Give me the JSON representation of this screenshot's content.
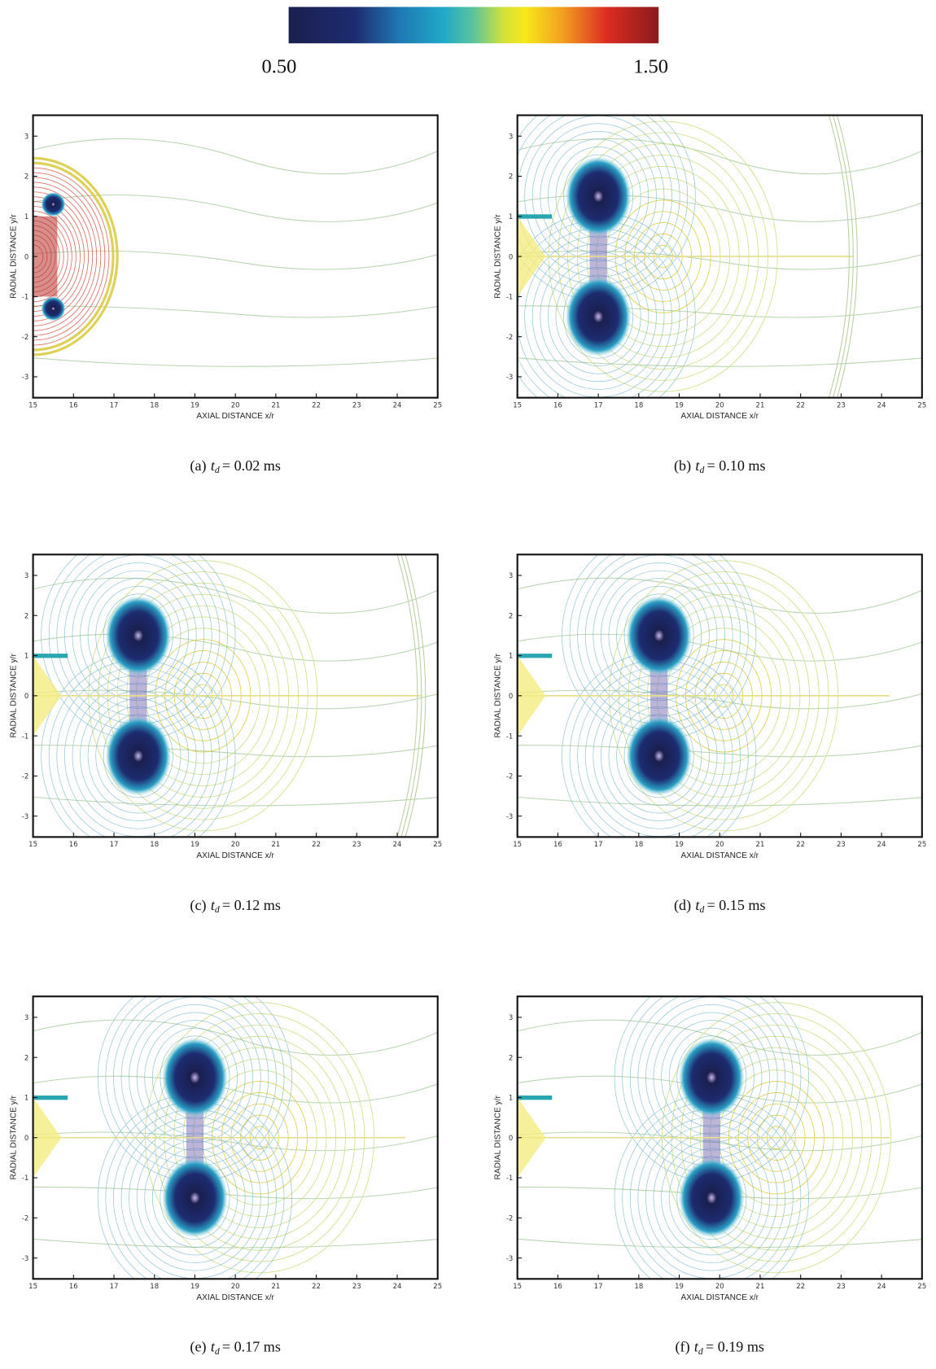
{
  "colorbar": {
    "min_label": "0.50",
    "max_label": "1.50"
  },
  "panels": [
    {
      "xlabel": "AXIAL DISTANCE  x/r",
      "ylabel": "RADIAL DISTANCE  y/r",
      "xticks": [
        "15",
        "16",
        "17",
        "18",
        "19",
        "20",
        "21",
        "22",
        "23",
        "24",
        "25"
      ],
      "yticks": [
        "3",
        "2",
        "1",
        "0",
        "-1",
        "-2",
        "-3"
      ],
      "caption": {
        "label": "(a)",
        "symbol": "t",
        "sub": "d",
        "value": "= 0.02 ms"
      }
    },
    {
      "xlabel": "AXIAL DISTANCE  x/r",
      "ylabel": "RADIAL DISTANCE  y/r",
      "xticks": [
        "15",
        "16",
        "17",
        "18",
        "19",
        "20",
        "21",
        "22",
        "23",
        "24",
        "25"
      ],
      "yticks": [
        "3",
        "2",
        "1",
        "0",
        "-1",
        "-2",
        "-3"
      ],
      "caption": {
        "label": "(b)",
        "symbol": "t",
        "sub": "d",
        "value": "= 0.10 ms"
      }
    },
    {
      "xlabel": "AXIAL DISTANCE  x/r",
      "ylabel": "RADIAL DISTANCE  y/r",
      "xticks": [
        "15",
        "16",
        "17",
        "18",
        "19",
        "20",
        "21",
        "22",
        "23",
        "24",
        "25"
      ],
      "yticks": [
        "3",
        "2",
        "1",
        "0",
        "-1",
        "-2",
        "-3"
      ],
      "caption": {
        "label": "(c)",
        "symbol": "t",
        "sub": "d",
        "value": "= 0.12 ms"
      }
    },
    {
      "xlabel": "AXIAL DISTANCE  x/r",
      "ylabel": "RADIAL DISTANCE  y/r",
      "xticks": [
        "15",
        "16",
        "17",
        "18",
        "19",
        "20",
        "21",
        "22",
        "23",
        "24",
        "25"
      ],
      "yticks": [
        "3",
        "2",
        "1",
        "0",
        "-1",
        "-2",
        "-3"
      ],
      "caption": {
        "label": "(d)",
        "symbol": "t",
        "sub": "d",
        "value": "= 0.15 ms"
      }
    },
    {
      "xlabel": "AXIAL DISTANCE  x/r",
      "ylabel": "RADIAL DISTANCE  y/r",
      "xticks": [
        "15",
        "16",
        "17",
        "18",
        "19",
        "20",
        "21",
        "22",
        "23",
        "24",
        "25"
      ],
      "yticks": [
        "3",
        "2",
        "1",
        "0",
        "-1",
        "-2",
        "-3"
      ],
      "caption": {
        "label": "(e)",
        "symbol": "t",
        "sub": "d",
        "value": "= 0.17 ms"
      }
    },
    {
      "xlabel": "AXIAL DISTANCE  x/r",
      "ylabel": "RADIAL DISTANCE  y/r",
      "xticks": [
        "15",
        "16",
        "17",
        "18",
        "19",
        "20",
        "21",
        "22",
        "23",
        "24",
        "25"
      ],
      "yticks": [
        "3",
        "2",
        "1",
        "0",
        "-1",
        "-2",
        "-3"
      ],
      "caption": {
        "label": "(f)",
        "symbol": "t",
        "sub": "d",
        "value": "= 0.19 ms"
      }
    }
  ]
}
